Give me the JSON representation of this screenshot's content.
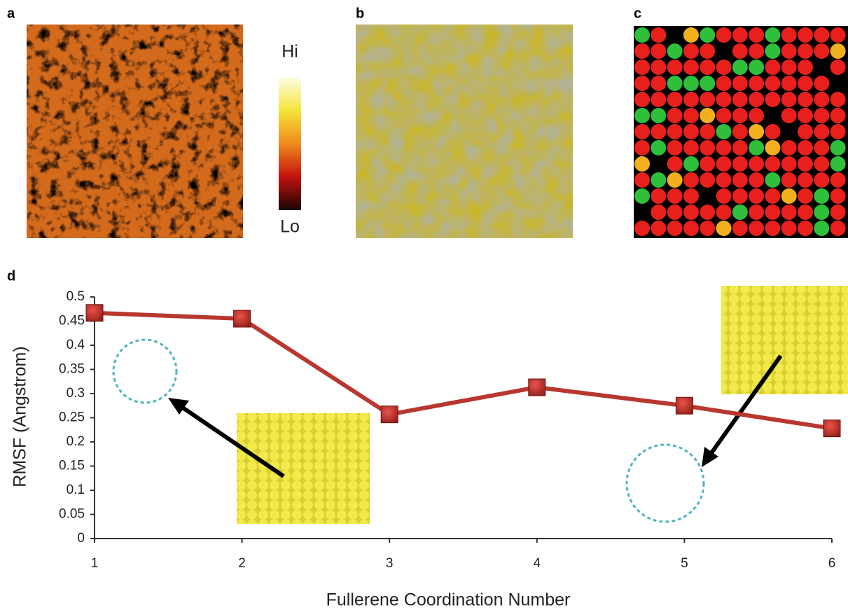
{
  "panels": {
    "a": "a",
    "b": "b",
    "c": "c",
    "d": "d"
  },
  "colorbar": {
    "high": "Hi",
    "low": "Lo"
  },
  "chart_data": {
    "type": "line",
    "x": [
      1,
      2,
      3,
      4,
      5,
      6
    ],
    "series": [
      {
        "color": "#b8372f",
        "values": [
          0.467,
          0.455,
          0.257,
          0.313,
          0.275,
          0.228
        ]
      }
    ],
    "xlim": [
      1,
      6
    ],
    "xticks": [
      1,
      2,
      3,
      4,
      5,
      6
    ],
    "ylim": [
      0,
      0.5
    ],
    "yticks": [
      0,
      0.05,
      0.1,
      0.15,
      0.2,
      0.25,
      0.3,
      0.35,
      0.4,
      0.45,
      0.5
    ],
    "xlabel": "Fullerene Coordination Number",
    "ylabel": "RMSF (Angstrom)"
  }
}
